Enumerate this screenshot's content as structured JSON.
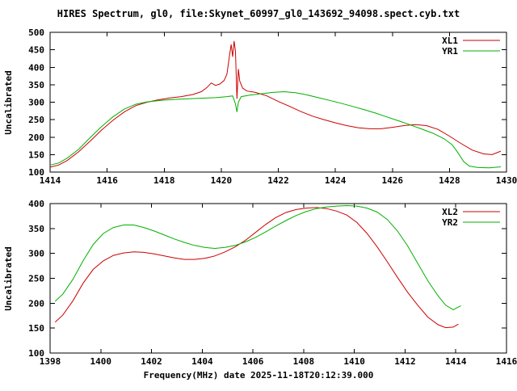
{
  "title": "HIRES Spectrum, gl0, file:Skynet_60997_gl0_143692_94098.spect.cyb.txt",
  "xlabel": "Frequency(MHz) date 2025-11-18T20:12:39.000",
  "background": "#ffffff",
  "text_color": "#000000",
  "chart_data": [
    {
      "type": "line",
      "title": "",
      "ylabel": "Uncalibrated",
      "xlabel": "",
      "xlim": [
        1414,
        1430
      ],
      "ylim": [
        100,
        500
      ],
      "xticks": [
        1414,
        1416,
        1418,
        1420,
        1422,
        1424,
        1426,
        1428,
        1430
      ],
      "yticks": [
        100,
        150,
        200,
        250,
        300,
        350,
        400,
        450,
        500
      ],
      "grid": false,
      "legend_position": "top-right",
      "series": [
        {
          "name": "XL1",
          "color": "#cc0000",
          "points": [
            [
              1414.0,
              114
            ],
            [
              1414.3,
              120
            ],
            [
              1414.6,
              133
            ],
            [
              1415.0,
              158
            ],
            [
              1415.4,
              188
            ],
            [
              1415.8,
              220
            ],
            [
              1416.2,
              248
            ],
            [
              1416.6,
              272
            ],
            [
              1417.0,
              290
            ],
            [
              1417.4,
              300
            ],
            [
              1417.8,
              307
            ],
            [
              1418.2,
              312
            ],
            [
              1418.6,
              316
            ],
            [
              1419.0,
              322
            ],
            [
              1419.3,
              330
            ],
            [
              1419.5,
              342
            ],
            [
              1419.65,
              355
            ],
            [
              1419.8,
              348
            ],
            [
              1419.95,
              352
            ],
            [
              1420.1,
              362
            ],
            [
              1420.2,
              380
            ],
            [
              1420.3,
              440
            ],
            [
              1420.35,
              465
            ],
            [
              1420.4,
              430
            ],
            [
              1420.45,
              475
            ],
            [
              1420.5,
              445
            ],
            [
              1420.55,
              310
            ],
            [
              1420.6,
              395
            ],
            [
              1420.65,
              360
            ],
            [
              1420.75,
              340
            ],
            [
              1420.9,
              332
            ],
            [
              1421.2,
              328
            ],
            [
              1421.6,
              318
            ],
            [
              1422.0,
              302
            ],
            [
              1422.4,
              288
            ],
            [
              1422.8,
              273
            ],
            [
              1423.2,
              260
            ],
            [
              1423.6,
              250
            ],
            [
              1424.0,
              241
            ],
            [
              1424.4,
              233
            ],
            [
              1424.8,
              227
            ],
            [
              1425.2,
              224
            ],
            [
              1425.6,
              224
            ],
            [
              1426.0,
              228
            ],
            [
              1426.4,
              233
            ],
            [
              1426.8,
              236
            ],
            [
              1427.2,
              233
            ],
            [
              1427.6,
              222
            ],
            [
              1428.0,
              203
            ],
            [
              1428.4,
              182
            ],
            [
              1428.8,
              163
            ],
            [
              1429.2,
              152
            ],
            [
              1429.5,
              150
            ],
            [
              1429.8,
              160
            ]
          ]
        },
        {
          "name": "YR1",
          "color": "#00b000",
          "points": [
            [
              1414.0,
              120
            ],
            [
              1414.3,
              126
            ],
            [
              1414.6,
              140
            ],
            [
              1415.0,
              165
            ],
            [
              1415.4,
              198
            ],
            [
              1415.8,
              230
            ],
            [
              1416.2,
              258
            ],
            [
              1416.6,
              280
            ],
            [
              1417.0,
              294
            ],
            [
              1417.4,
              301
            ],
            [
              1418.0,
              306
            ],
            [
              1418.6,
              309
            ],
            [
              1419.2,
              311
            ],
            [
              1419.8,
              313
            ],
            [
              1420.2,
              316
            ],
            [
              1420.4,
              318
            ],
            [
              1420.5,
              295
            ],
            [
              1420.55,
              272
            ],
            [
              1420.6,
              300
            ],
            [
              1420.7,
              316
            ],
            [
              1421.0,
              320
            ],
            [
              1421.4,
              324
            ],
            [
              1421.8,
              328
            ],
            [
              1422.2,
              330
            ],
            [
              1422.6,
              327
            ],
            [
              1423.0,
              321
            ],
            [
              1423.4,
              313
            ],
            [
              1423.8,
              305
            ],
            [
              1424.2,
              297
            ],
            [
              1424.6,
              288
            ],
            [
              1425.0,
              279
            ],
            [
              1425.4,
              269
            ],
            [
              1425.8,
              258
            ],
            [
              1426.2,
              247
            ],
            [
              1426.6,
              236
            ],
            [
              1427.0,
              224
            ],
            [
              1427.4,
              212
            ],
            [
              1427.8,
              196
            ],
            [
              1428.1,
              178
            ],
            [
              1428.3,
              155
            ],
            [
              1428.5,
              130
            ],
            [
              1428.7,
              117
            ],
            [
              1429.0,
              113
            ],
            [
              1429.4,
              112
            ],
            [
              1429.8,
              115
            ]
          ]
        }
      ]
    },
    {
      "type": "line",
      "title": "",
      "ylabel": "Uncalibrated",
      "xlabel": "Frequency(MHz) date 2025-11-18T20:12:39.000",
      "xlim": [
        1398,
        1416
      ],
      "ylim": [
        100,
        400
      ],
      "xticks": [
        1398,
        1400,
        1402,
        1404,
        1406,
        1408,
        1410,
        1412,
        1414,
        1416
      ],
      "yticks": [
        100,
        150,
        200,
        250,
        300,
        350,
        400
      ],
      "grid": false,
      "legend_position": "top-right",
      "series": [
        {
          "name": "XL2",
          "color": "#cc0000",
          "points": [
            [
              1398.2,
              162
            ],
            [
              1398.5,
              176
            ],
            [
              1398.9,
              205
            ],
            [
              1399.3,
              240
            ],
            [
              1399.7,
              268
            ],
            [
              1400.1,
              285
            ],
            [
              1400.5,
              296
            ],
            [
              1400.9,
              301
            ],
            [
              1401.3,
              303
            ],
            [
              1401.7,
              302
            ],
            [
              1402.1,
              299
            ],
            [
              1402.5,
              295
            ],
            [
              1402.9,
              291
            ],
            [
              1403.3,
              288
            ],
            [
              1403.7,
              288
            ],
            [
              1404.1,
              290
            ],
            [
              1404.5,
              295
            ],
            [
              1404.9,
              303
            ],
            [
              1405.3,
              313
            ],
            [
              1405.7,
              326
            ],
            [
              1406.1,
              342
            ],
            [
              1406.5,
              358
            ],
            [
              1406.9,
              372
            ],
            [
              1407.3,
              382
            ],
            [
              1407.7,
              388
            ],
            [
              1408.1,
              391
            ],
            [
              1408.5,
              392
            ],
            [
              1408.9,
              390
            ],
            [
              1409.3,
              385
            ],
            [
              1409.7,
              377
            ],
            [
              1410.1,
              362
            ],
            [
              1410.5,
              340
            ],
            [
              1410.9,
              313
            ],
            [
              1411.3,
              283
            ],
            [
              1411.7,
              252
            ],
            [
              1412.1,
              222
            ],
            [
              1412.5,
              196
            ],
            [
              1412.9,
              172
            ],
            [
              1413.3,
              157
            ],
            [
              1413.6,
              151
            ],
            [
              1413.9,
              152
            ],
            [
              1414.1,
              158
            ]
          ]
        },
        {
          "name": "YR2",
          "color": "#00b000",
          "points": [
            [
              1398.2,
              204
            ],
            [
              1398.5,
              218
            ],
            [
              1398.9,
              248
            ],
            [
              1399.3,
              285
            ],
            [
              1399.7,
              318
            ],
            [
              1400.1,
              340
            ],
            [
              1400.5,
              352
            ],
            [
              1400.9,
              357
            ],
            [
              1401.3,
              357
            ],
            [
              1401.7,
              352
            ],
            [
              1402.1,
              345
            ],
            [
              1402.5,
              337
            ],
            [
              1402.9,
              329
            ],
            [
              1403.3,
              322
            ],
            [
              1403.7,
              316
            ],
            [
              1404.1,
              312
            ],
            [
              1404.5,
              310
            ],
            [
              1404.9,
              312
            ],
            [
              1405.3,
              316
            ],
            [
              1405.7,
              323
            ],
            [
              1406.1,
              332
            ],
            [
              1406.5,
              343
            ],
            [
              1406.9,
              355
            ],
            [
              1407.3,
              366
            ],
            [
              1407.7,
              376
            ],
            [
              1408.1,
              384
            ],
            [
              1408.5,
              390
            ],
            [
              1408.9,
              393
            ],
            [
              1409.3,
              395
            ],
            [
              1409.7,
              396
            ],
            [
              1410.1,
              395
            ],
            [
              1410.5,
              391
            ],
            [
              1410.9,
              383
            ],
            [
              1411.3,
              368
            ],
            [
              1411.7,
              345
            ],
            [
              1412.1,
              315
            ],
            [
              1412.5,
              280
            ],
            [
              1412.9,
              245
            ],
            [
              1413.3,
              215
            ],
            [
              1413.6,
              196
            ],
            [
              1413.9,
              187
            ],
            [
              1414.2,
              195
            ]
          ]
        }
      ]
    }
  ]
}
